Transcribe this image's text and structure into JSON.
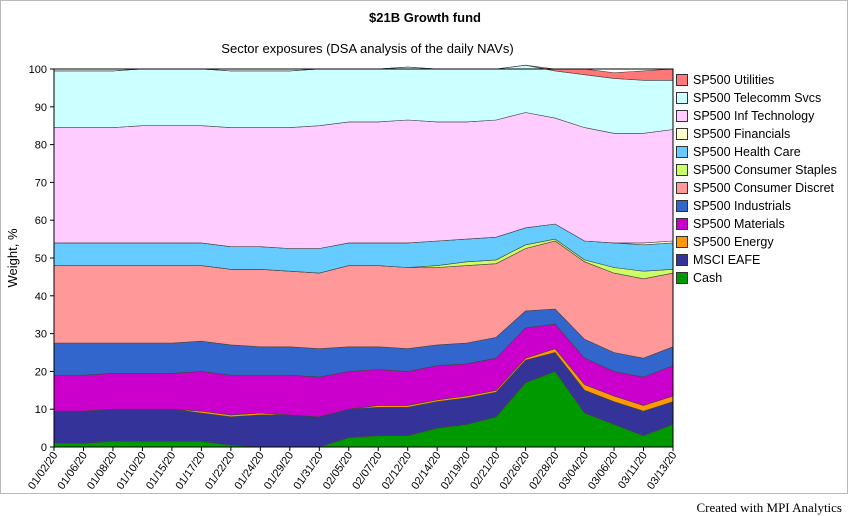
{
  "footer": "Created with MPI Analytics",
  "chart_data": {
    "type": "area",
    "stacked": true,
    "title": "$21B Growth fund",
    "subtitle": "Sector exposures (DSA analysis of the daily NAVs)",
    "xlabel": "",
    "ylabel": "Weight, %",
    "ylim": [
      0,
      100
    ],
    "yticks": [
      0,
      10,
      20,
      30,
      40,
      50,
      60,
      70,
      80,
      90,
      100
    ],
    "grid": false,
    "legend_position": "right",
    "x": [
      "01/02/20",
      "01/06/20",
      "01/08/20",
      "01/10/20",
      "01/15/20",
      "01/17/20",
      "01/22/20",
      "01/24/20",
      "01/29/20",
      "01/31/20",
      "02/05/20",
      "02/07/20",
      "02/12/20",
      "02/14/20",
      "02/19/20",
      "02/21/20",
      "02/26/20",
      "02/28/20",
      "03/04/20",
      "03/06/20",
      "03/11/20",
      "03/13/20"
    ],
    "series": [
      {
        "name": "Cash",
        "color": "#009900",
        "values": [
          1,
          1,
          1.5,
          1.5,
          1.5,
          1.5,
          0.5,
          0,
          0,
          0,
          2.5,
          3,
          3,
          5,
          6,
          8,
          17,
          20,
          9,
          6,
          3,
          6
        ]
      },
      {
        "name": "MSCI EAFE",
        "color": "#333399",
        "values": [
          8.5,
          8.5,
          8.5,
          8.5,
          8.5,
          7.5,
          7.5,
          8.5,
          8.5,
          8,
          7.5,
          7.5,
          7.5,
          7,
          7,
          6.5,
          6,
          5,
          6,
          6,
          6.5,
          6
        ]
      },
      {
        "name": "SP500 Energy",
        "color": "#ff9900",
        "values": [
          0,
          0,
          0,
          0,
          0,
          0.5,
          0.5,
          0.5,
          0,
          0,
          0,
          0.5,
          0.5,
          0.5,
          0.5,
          0.5,
          0.5,
          1,
          1.5,
          1.5,
          1.5,
          1.5
        ]
      },
      {
        "name": "SP500 Materials",
        "color": "#cc00cc",
        "values": [
          9.5,
          9.5,
          9.5,
          9.5,
          9.5,
          10.5,
          10.5,
          10,
          10.5,
          10.5,
          10,
          9.5,
          9,
          9,
          8.5,
          8.5,
          8,
          6.5,
          7,
          6.5,
          7.5,
          8
        ]
      },
      {
        "name": "SP500 Industrials",
        "color": "#3366cc",
        "values": [
          8.5,
          8.5,
          8,
          8,
          8,
          8,
          8,
          7.5,
          7.5,
          7.5,
          6.5,
          6,
          6,
          5.5,
          5.5,
          5.5,
          4.5,
          4,
          5,
          5,
          5,
          5
        ]
      },
      {
        "name": "SP500 Consumer Discret",
        "color": "#ff9999",
        "values": [
          20.5,
          20.5,
          20.5,
          20.5,
          20.5,
          20,
          20,
          20.5,
          20,
          20,
          21.5,
          21.5,
          21.5,
          20.5,
          20.5,
          19.5,
          16.5,
          18,
          20.5,
          21,
          21,
          19.5
        ]
      },
      {
        "name": "SP500 Consumer Staples",
        "color": "#ccff66",
        "values": [
          0,
          0,
          0,
          0,
          0,
          0,
          0,
          0,
          0,
          0,
          0,
          0,
          0,
          0.5,
          1,
          1,
          1,
          0.5,
          0.5,
          1.5,
          2,
          1
        ]
      },
      {
        "name": "SP500 Health Care",
        "color": "#66ccff",
        "values": [
          6,
          6,
          6,
          6,
          6,
          6,
          6,
          6,
          6,
          6.5,
          6,
          6,
          6.5,
          6.5,
          6,
          6,
          4.5,
          4,
          5,
          6.5,
          7,
          7
        ]
      },
      {
        "name": "SP500 Financials",
        "color": "#ffffcc",
        "values": [
          0,
          0,
          0,
          0,
          0,
          0,
          0,
          0,
          0,
          0,
          0,
          0,
          0,
          0,
          0,
          0,
          0,
          0,
          0,
          0,
          0.5,
          0.5
        ]
      },
      {
        "name": "SP500 Inf Technology",
        "color": "#ffccff",
        "values": [
          30.5,
          30.5,
          30.5,
          31,
          31,
          31,
          31.5,
          31.5,
          32,
          32.5,
          32,
          32,
          32.5,
          31.5,
          31,
          31,
          30.5,
          28,
          30,
          29,
          29,
          29.5
        ]
      },
      {
        "name": "SP500 Telecomm Svcs",
        "color": "#ccffff",
        "values": [
          15,
          15,
          15,
          15,
          15,
          15,
          15,
          15,
          15,
          15,
          14,
          14,
          14,
          14,
          14,
          13.5,
          12.5,
          12.5,
          14,
          14.5,
          14,
          13
        ]
      },
      {
        "name": "SP500 Utilities",
        "color": "#ff7777",
        "values": [
          0,
          0,
          0,
          0,
          0,
          0,
          0,
          0,
          0,
          0,
          0,
          0,
          0,
          0,
          0,
          0,
          0,
          0.5,
          1.5,
          1.5,
          2.5,
          3
        ]
      }
    ]
  }
}
